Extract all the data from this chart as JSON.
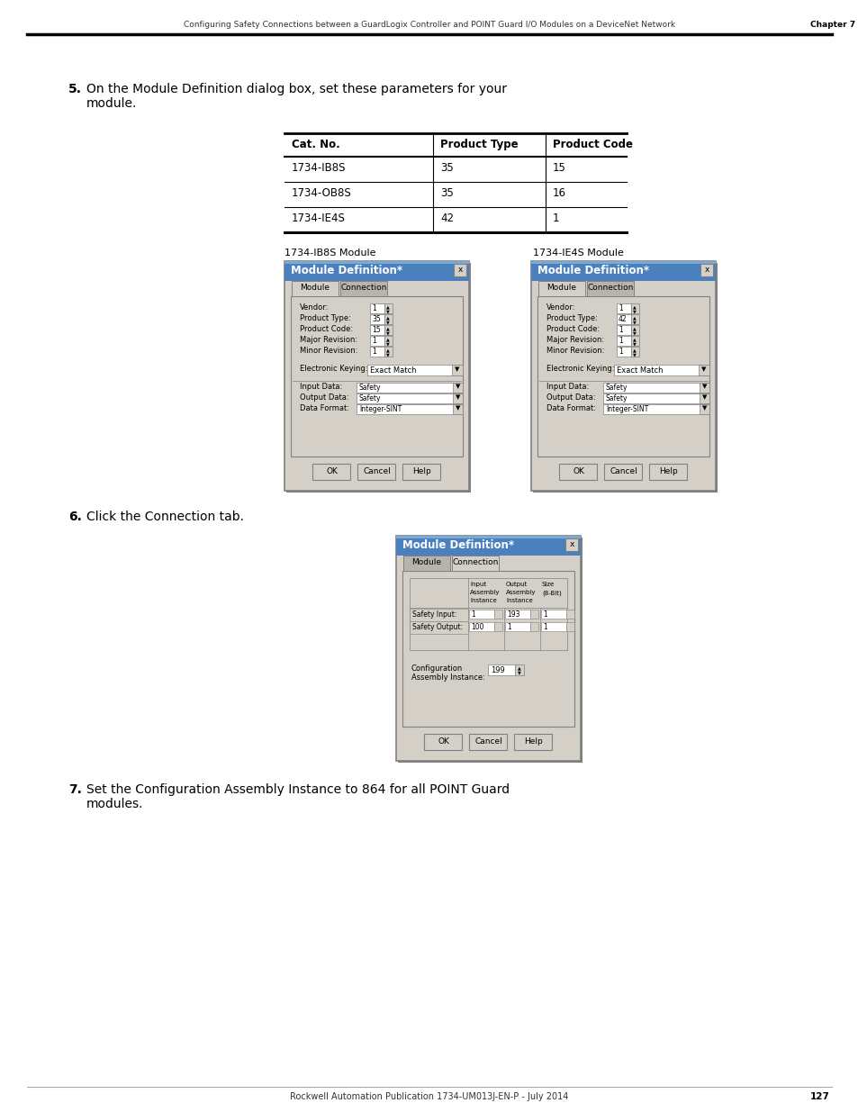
{
  "page_header": "Configuring Safety Connections between a GuardLogix Controller and POINT Guard I/O Modules on a DeviceNet Network",
  "chapter": "Chapter 7",
  "page_number": "127",
  "footer_text": "Rockwell Automation Publication 1734-UM013J-EN-P - July 2014",
  "step5_text": "On the Module Definition dialog box, set these parameters for your\nmodule.",
  "step5_number": "5.",
  "table_headers": [
    "Cat. No.",
    "Product Type",
    "Product Code"
  ],
  "table_rows": [
    [
      "1734-IB8S",
      "35",
      "15"
    ],
    [
      "1734-OB8S",
      "35",
      "16"
    ],
    [
      "1734-IE4S",
      "42",
      "1"
    ]
  ],
  "label_ib8s": "1734-IB8S Module",
  "label_ie4s": "1734-IE4S Module",
  "step6_text": "Click the Connection tab.",
  "step6_number": "6.",
  "step7_text": "Set the Configuration Assembly Instance to 864 for all POINT Guard\nmodules.",
  "step7_number": "7.",
  "dialog_title": "Module Definition*",
  "tab_module": "Module",
  "tab_connection": "Connection",
  "ib8s_fields": [
    [
      "Vendor:",
      "1"
    ],
    [
      "Product Type:",
      "35"
    ],
    [
      "Product Code:",
      "15"
    ],
    [
      "Major Revision:",
      "1"
    ],
    [
      "Minor Revision:",
      "1"
    ]
  ],
  "ie4s_fields": [
    [
      "Vendor:",
      "1"
    ],
    [
      "Product Type:",
      "42"
    ],
    [
      "Product Code:",
      "1"
    ],
    [
      "Major Revision:",
      "1"
    ],
    [
      "Minor Revision:",
      "1"
    ]
  ],
  "electronic_keying_label": "Electronic Keying:",
  "electronic_keying_value": "Exact Match",
  "input_data_label": "Input Data:",
  "input_data_value": "Safety",
  "output_data_label": "Output Data:",
  "output_data_value": "Safety",
  "data_format_label": "Data Format:",
  "data_format_value": "Integer-SINT",
  "config_label": "Configuration\nAssembly Instance:",
  "config_value": "199",
  "background_color": "#ffffff",
  "dialog_bg": "#d4d0c8",
  "title_bar_color": "#4a80be",
  "conn_rows": [
    [
      "Safety Input:",
      "1",
      "193",
      "1"
    ],
    [
      "Safety Output:",
      "100",
      "1",
      "1"
    ]
  ]
}
